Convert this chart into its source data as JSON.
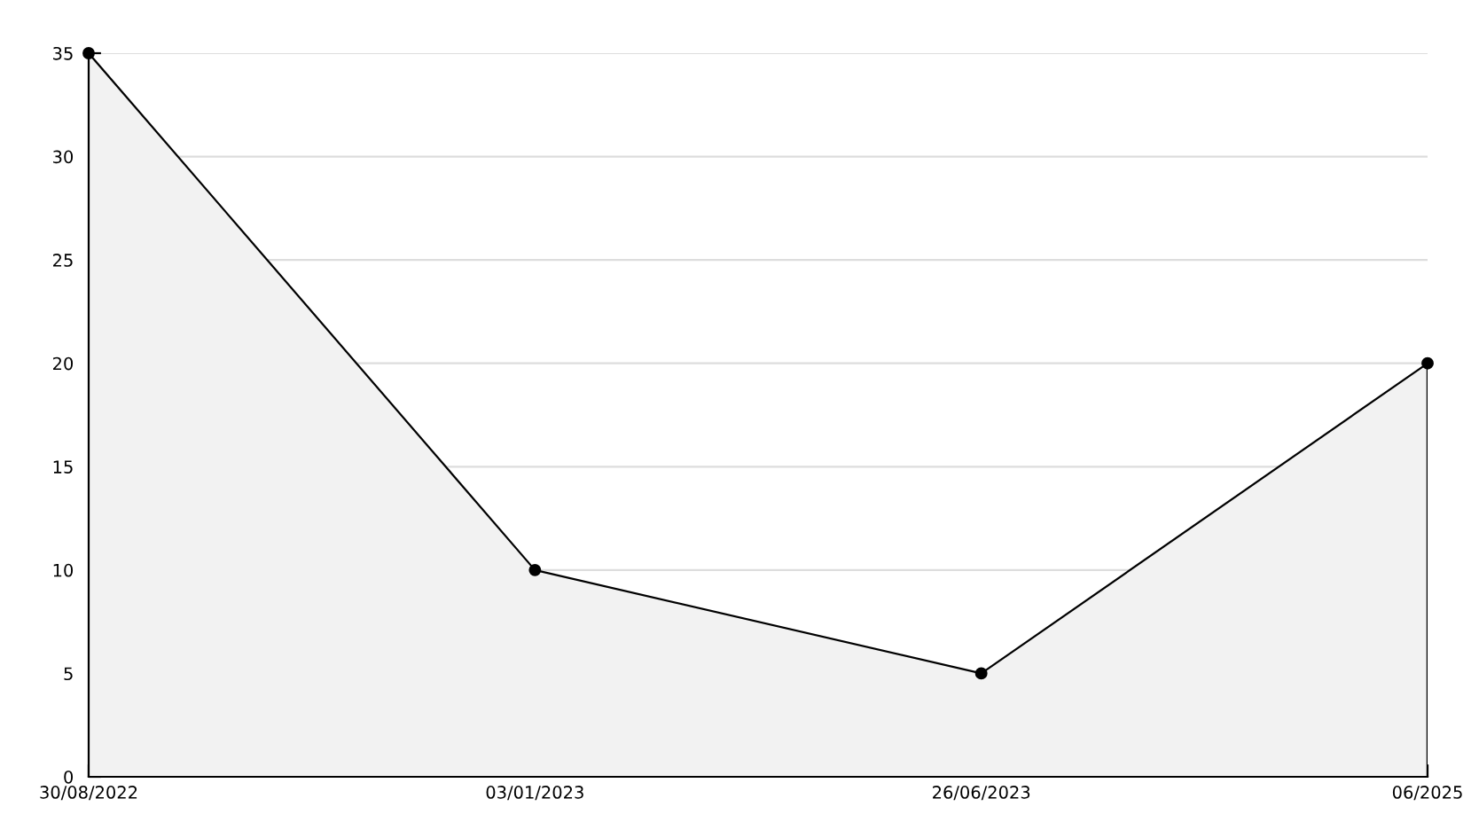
{
  "chart_data": {
    "type": "area",
    "categories": [
      "30/08/2022",
      "03/01/2023",
      "26/06/2023",
      "06/2025"
    ],
    "series": [
      {
        "color": "#000000",
        "values": [
          35,
          10,
          5,
          20
        ]
      }
    ],
    "ylim": [
      0,
      35
    ],
    "yticks": [
      0,
      5,
      10,
      15,
      20,
      25,
      30,
      35
    ],
    "grid": "y",
    "marker": "circle",
    "line_style": "solid"
  }
}
